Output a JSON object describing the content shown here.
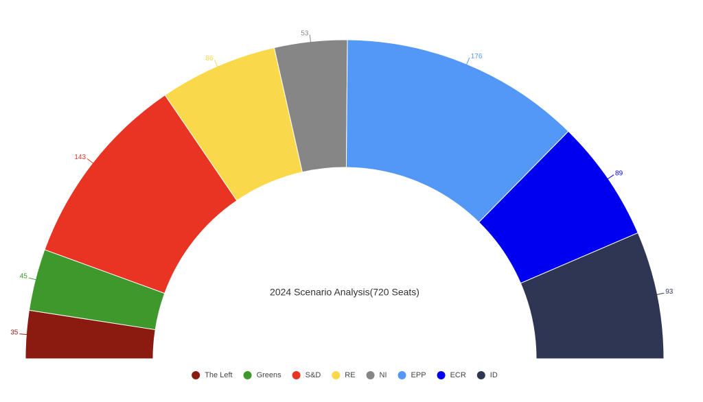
{
  "chart_data": {
    "type": "half-donut",
    "title": "2024 Scenario Analysis(720 Seats)",
    "categories": [
      "The Left",
      "Greens",
      "S&D",
      "RE",
      "NI",
      "EPP",
      "ECR",
      "ID"
    ],
    "values": [
      35,
      45,
      143,
      86,
      53,
      176,
      89,
      93
    ],
    "colors": [
      "#8b1a10",
      "#3f982b",
      "#e93424",
      "#f9d84a",
      "#868686",
      "#5397f7",
      "#0000f0",
      "#2e3654"
    ]
  }
}
